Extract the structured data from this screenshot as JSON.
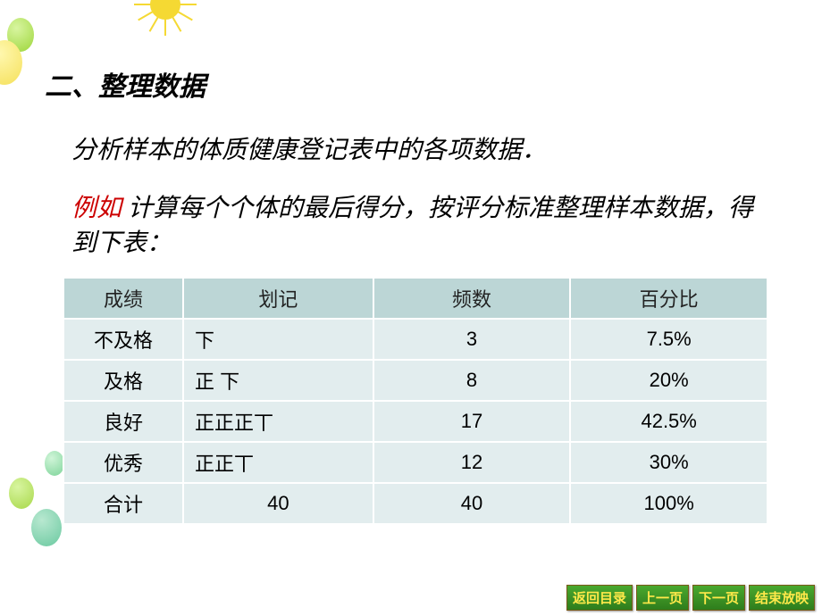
{
  "heading": "二、整理数据",
  "line1": "分析样本的体质健康登记表中的各项数据．",
  "line2_prefix": "例如",
  "line2_rest": " 计算每个个体的最后得分，按评分标准整理样本数据，得到下表：",
  "table": {
    "columns": [
      "成绩",
      "划记",
      "频数",
      "百分比"
    ],
    "rows": [
      {
        "grade": "不及格",
        "tally": "下",
        "freq": "3",
        "pct": "7.5%"
      },
      {
        "grade": "及格",
        "tally": "正 下",
        "freq": "8",
        "pct": "20%"
      },
      {
        "grade": "良好",
        "tally": "正正正丅",
        "freq": "17",
        "pct": "42.5%"
      },
      {
        "grade": "优秀",
        "tally": "正正丅",
        "freq": "12",
        "pct": "30%"
      },
      {
        "grade": "合计",
        "tally": "40",
        "freq": "40",
        "pct": "100%"
      }
    ],
    "header_bg": "#bcd6d6",
    "cell_bg": "#e2edee",
    "border_color": "#ffffff",
    "font_size": 22
  },
  "nav": {
    "back": "返回目录",
    "prev": "上一页",
    "next": "下一页",
    "end": "结束放映"
  },
  "colors": {
    "text": "#000000",
    "accent_red": "#cc0000",
    "background": "#ffffff",
    "nav_bg": "#3a9626",
    "nav_text": "#ffe94a"
  }
}
